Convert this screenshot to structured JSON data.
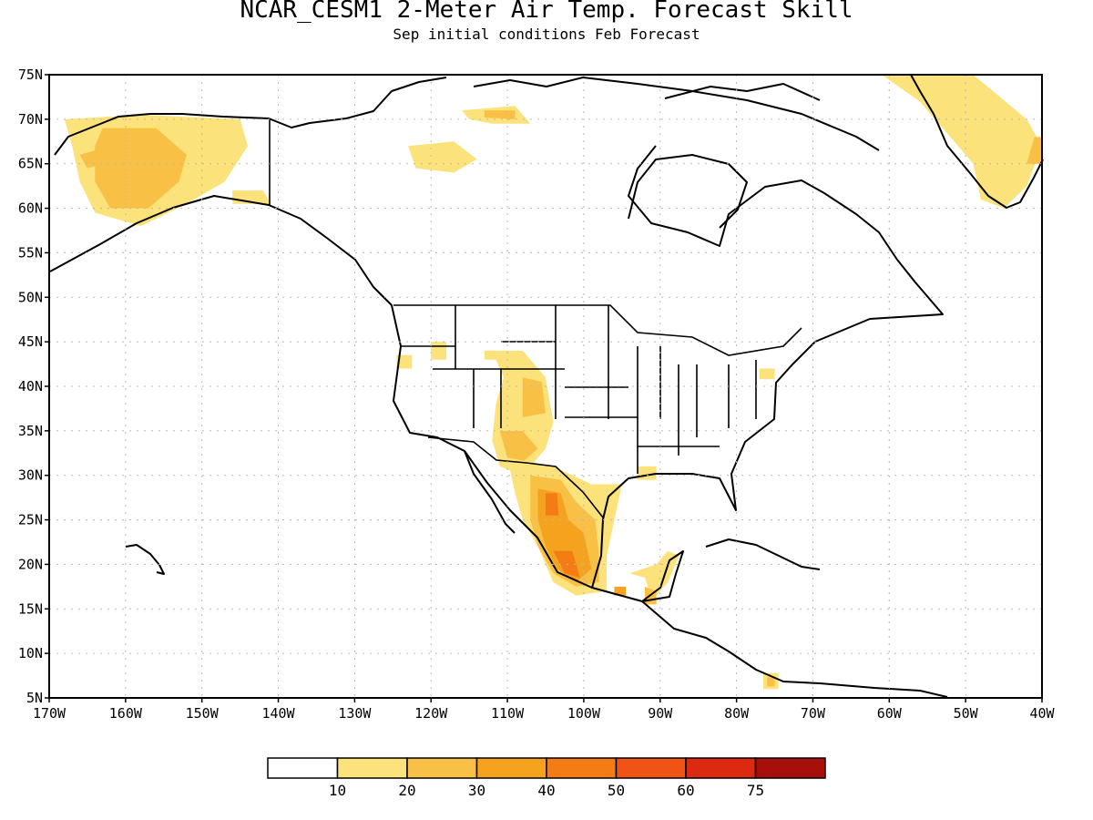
{
  "title": "NCAR_CESM1 2-Meter Air Temp. Forecast Skill",
  "subtitle": "Sep initial conditions  Feb Forecast",
  "map": {
    "projection": "equirectangular",
    "lon_range": [
      -170,
      -40
    ],
    "lat_range": [
      5,
      75
    ],
    "grid": "dotted",
    "lat_ticks": [
      {
        "value": 75,
        "label": "75N"
      },
      {
        "value": 70,
        "label": "70N"
      },
      {
        "value": 65,
        "label": "65N"
      },
      {
        "value": 60,
        "label": "60N"
      },
      {
        "value": 55,
        "label": "55N"
      },
      {
        "value": 50,
        "label": "50N"
      },
      {
        "value": 45,
        "label": "45N"
      },
      {
        "value": 40,
        "label": "40N"
      },
      {
        "value": 35,
        "label": "35N"
      },
      {
        "value": 30,
        "label": "30N"
      },
      {
        "value": 25,
        "label": "25N"
      },
      {
        "value": 20,
        "label": "20N"
      },
      {
        "value": 15,
        "label": "15N"
      },
      {
        "value": 10,
        "label": "10N"
      },
      {
        "value": 5,
        "label": "5N"
      }
    ],
    "lon_ticks": [
      {
        "value": -170,
        "label": "170W"
      },
      {
        "value": -160,
        "label": "160W"
      },
      {
        "value": -150,
        "label": "150W"
      },
      {
        "value": -140,
        "label": "140W"
      },
      {
        "value": -130,
        "label": "130W"
      },
      {
        "value": -120,
        "label": "120W"
      },
      {
        "value": -110,
        "label": "110W"
      },
      {
        "value": -100,
        "label": "100W"
      },
      {
        "value": -90,
        "label": "90W"
      },
      {
        "value": -80,
        "label": "80W"
      },
      {
        "value": -70,
        "label": "70W"
      },
      {
        "value": -60,
        "label": "60W"
      },
      {
        "value": -50,
        "label": "50W"
      },
      {
        "value": -40,
        "label": "40W"
      }
    ]
  },
  "colorbar": {
    "colors": [
      "#ffffff",
      "#fbe27a",
      "#f8c145",
      "#f5a21f",
      "#f47c14",
      "#f05414",
      "#dc2a10",
      "#a60f0a"
    ],
    "labels": [
      "10",
      "20",
      "30",
      "40",
      "50",
      "60",
      "75"
    ]
  },
  "skill_regions": [
    {
      "level": 1,
      "points": [
        [
          -168,
          70
        ],
        [
          -158,
          70.5
        ],
        [
          -145,
          70
        ],
        [
          -144,
          67
        ],
        [
          -147,
          63
        ],
        [
          -152,
          60.5
        ],
        [
          -158,
          58
        ],
        [
          -164,
          59.5
        ],
        [
          -166,
          63
        ],
        [
          -167,
          67
        ]
      ]
    },
    {
      "level": 2,
      "points": [
        [
          -163,
          69
        ],
        [
          -156,
          69
        ],
        [
          -152,
          66
        ],
        [
          -153,
          63
        ],
        [
          -157,
          60
        ],
        [
          -162,
          60
        ],
        [
          -164,
          63
        ],
        [
          -164,
          67
        ]
      ]
    },
    {
      "level": 2,
      "points": [
        [
          -166,
          66
        ],
        [
          -164,
          66.5
        ],
        [
          -163,
          65
        ],
        [
          -165,
          64.5
        ]
      ]
    },
    {
      "level": 1,
      "points": [
        [
          -146,
          62
        ],
        [
          -142,
          62
        ],
        [
          -141,
          60.5
        ],
        [
          -146,
          60.5
        ]
      ]
    },
    {
      "level": 1,
      "points": [
        [
          -123,
          67
        ],
        [
          -117,
          67.5
        ],
        [
          -114,
          65.5
        ],
        [
          -117,
          64
        ],
        [
          -122,
          64.5
        ]
      ]
    },
    {
      "level": 1,
      "points": [
        [
          -116,
          71
        ],
        [
          -109,
          71.5
        ],
        [
          -107,
          69.5
        ],
        [
          -112,
          69.5
        ],
        [
          -115,
          70
        ]
      ]
    },
    {
      "level": 2,
      "points": [
        [
          -113,
          71
        ],
        [
          -109,
          71
        ],
        [
          -109,
          70
        ],
        [
          -113,
          70.2
        ]
      ]
    },
    {
      "level": 1,
      "points": [
        [
          -61,
          75
        ],
        [
          -49,
          75
        ],
        [
          -42,
          70
        ],
        [
          -40,
          67
        ],
        [
          -42,
          62.5
        ],
        [
          -45,
          60
        ],
        [
          -48,
          61
        ],
        [
          -49,
          65
        ],
        [
          -53,
          69
        ],
        [
          -56,
          72
        ]
      ]
    },
    {
      "level": 2,
      "points": [
        [
          -41,
          68
        ],
        [
          -40,
          68
        ],
        [
          -40,
          65
        ],
        [
          -42,
          65
        ]
      ]
    },
    {
      "level": 1,
      "points": [
        [
          -120,
          45
        ],
        [
          -118,
          45
        ],
        [
          -118,
          43
        ],
        [
          -120,
          43
        ]
      ]
    },
    {
      "level": 1,
      "points": [
        [
          -124.5,
          43.5
        ],
        [
          -122.5,
          43.5
        ],
        [
          -122.5,
          42
        ],
        [
          -124.5,
          42
        ]
      ]
    },
    {
      "level": 1,
      "points": [
        [
          -113,
          44
        ],
        [
          -111.5,
          44
        ],
        [
          -111.5,
          43
        ],
        [
          -113,
          43
        ]
      ]
    },
    {
      "level": 1,
      "points": [
        [
          -112,
          44
        ],
        [
          -108,
          44
        ],
        [
          -105,
          41
        ],
        [
          -104,
          36
        ],
        [
          -105,
          33
        ],
        [
          -108,
          30
        ],
        [
          -111,
          31
        ],
        [
          -112,
          34
        ],
        [
          -111.5,
          38
        ],
        [
          -110.5,
          41
        ]
      ]
    },
    {
      "level": 2,
      "points": [
        [
          -108,
          41
        ],
        [
          -105.5,
          40.5
        ],
        [
          -105,
          37
        ],
        [
          -108,
          36.5
        ]
      ]
    },
    {
      "level": 2,
      "points": [
        [
          -111,
          35
        ],
        [
          -108,
          35
        ],
        [
          -106,
          33
        ],
        [
          -108,
          31.5
        ],
        [
          -110,
          32
        ]
      ]
    },
    {
      "level": 1,
      "points": [
        [
          -110,
          32
        ],
        [
          -104,
          31
        ],
        [
          -99,
          29
        ],
        [
          -95,
          29
        ],
        [
          -96,
          25
        ],
        [
          -97,
          21
        ],
        [
          -97,
          17
        ],
        [
          -101,
          16.5
        ],
        [
          -104,
          18
        ],
        [
          -106,
          22
        ],
        [
          -108,
          25
        ],
        [
          -109,
          28
        ]
      ]
    },
    {
      "level": 2,
      "points": [
        [
          -107,
          30
        ],
        [
          -103,
          29.5
        ],
        [
          -101,
          27
        ],
        [
          -98.5,
          25
        ],
        [
          -98,
          21
        ],
        [
          -98,
          18
        ],
        [
          -101,
          17.5
        ],
        [
          -104,
          19
        ],
        [
          -106,
          22
        ],
        [
          -107,
          25
        ]
      ]
    },
    {
      "level": 3,
      "points": [
        [
          -106,
          28.5
        ],
        [
          -103,
          28
        ],
        [
          -102,
          25
        ],
        [
          -100,
          23.5
        ],
        [
          -99,
          19.5
        ],
        [
          -101,
          18
        ],
        [
          -103.5,
          19.5
        ],
        [
          -105,
          22
        ],
        [
          -106,
          25
        ]
      ]
    },
    {
      "level": 4,
      "points": [
        [
          -105,
          28
        ],
        [
          -103.5,
          28
        ],
        [
          -103.3,
          25.5
        ],
        [
          -105,
          25.5
        ]
      ]
    },
    {
      "level": 4,
      "points": [
        [
          -104,
          21.5
        ],
        [
          -101.5,
          21.5
        ],
        [
          -100.5,
          18.5
        ],
        [
          -102.5,
          19
        ]
      ]
    },
    {
      "level": 1,
      "points": [
        [
          -94,
          19
        ],
        [
          -92,
          18.5
        ],
        [
          -91,
          16
        ],
        [
          -89,
          18
        ],
        [
          -87.5,
          21
        ],
        [
          -89,
          21.5
        ],
        [
          -90.5,
          20
        ]
      ]
    },
    {
      "level": 2,
      "points": [
        [
          -92,
          17.5
        ],
        [
          -90.5,
          17
        ],
        [
          -90.5,
          15.5
        ],
        [
          -92,
          15.5
        ]
      ]
    },
    {
      "level": 3,
      "points": [
        [
          -96,
          17.5
        ],
        [
          -94.5,
          17.5
        ],
        [
          -94.5,
          16.5
        ],
        [
          -96,
          16.5
        ]
      ]
    },
    {
      "level": 1,
      "points": [
        [
          -76.5,
          7.8
        ],
        [
          -74.5,
          7.8
        ],
        [
          -74.5,
          6
        ],
        [
          -76.5,
          6
        ]
      ]
    },
    {
      "level": 2,
      "points": [
        [
          -76,
          7.3
        ],
        [
          -75,
          7.3
        ],
        [
          -75,
          6.3
        ],
        [
          -76,
          6.3
        ]
      ]
    },
    {
      "level": 1,
      "points": [
        [
          -77,
          42
        ],
        [
          -75,
          42
        ],
        [
          -75,
          40.8
        ],
        [
          -77,
          40.8
        ]
      ]
    },
    {
      "level": 1,
      "points": [
        [
          -93,
          31
        ],
        [
          -90.5,
          31
        ],
        [
          -90.5,
          29.5
        ],
        [
          -93,
          29.5
        ]
      ]
    }
  ]
}
